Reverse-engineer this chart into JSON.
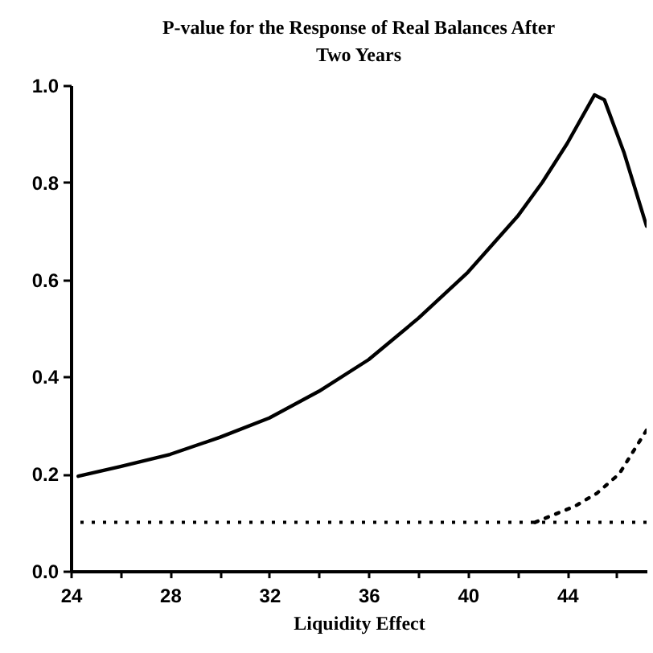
{
  "chart_data": {
    "type": "line",
    "title": "P-value for the Response of Real Balances After Two Years",
    "xlabel": "Liquidity Effect",
    "xlim": [
      24,
      47.2
    ],
    "xticks": [
      24,
      {
        "value": 26,
        "label": null
      },
      28,
      {
        "value": 30,
        "label": null
      },
      32,
      {
        "value": 34,
        "label": null
      },
      36,
      {
        "value": 38,
        "label": null
      },
      40,
      {
        "value": 42,
        "label": null
      },
      44,
      {
        "value": 46,
        "label": null
      }
    ],
    "ylim": [
      0,
      1
    ],
    "yticks": [
      {
        "value": 0,
        "label": "0.0"
      },
      0.2,
      0.4,
      0.6,
      0.8,
      {
        "value": 1,
        "label": "1.0"
      }
    ],
    "grid": false,
    "marker": "none",
    "series": [
      {
        "color": "#000000",
        "line_style": "solid",
        "x": [
          24.3,
          26,
          28,
          30,
          32,
          34,
          36,
          38,
          40,
          42,
          43,
          44,
          45.1,
          45.5,
          46.3,
          47.2
        ],
        "values": [
          0.195,
          0.215,
          0.24,
          0.275,
          0.315,
          0.37,
          0.435,
          0.52,
          0.615,
          0.73,
          0.8,
          0.88,
          0.98,
          0.97,
          0.86,
          0.71
        ]
      },
      {
        "color": "#000000",
        "line_style": "dotted",
        "x": [
          42.7,
          44.3,
          45.2,
          46.1,
          47.2
        ],
        "values": [
          0.1,
          0.133,
          0.16,
          0.2,
          0.29
        ]
      }
    ],
    "ref_lines": [
      {
        "axis": "y",
        "value": 0.1,
        "label": null,
        "color": "#000000",
        "line_style": "dotted"
      }
    ]
  }
}
